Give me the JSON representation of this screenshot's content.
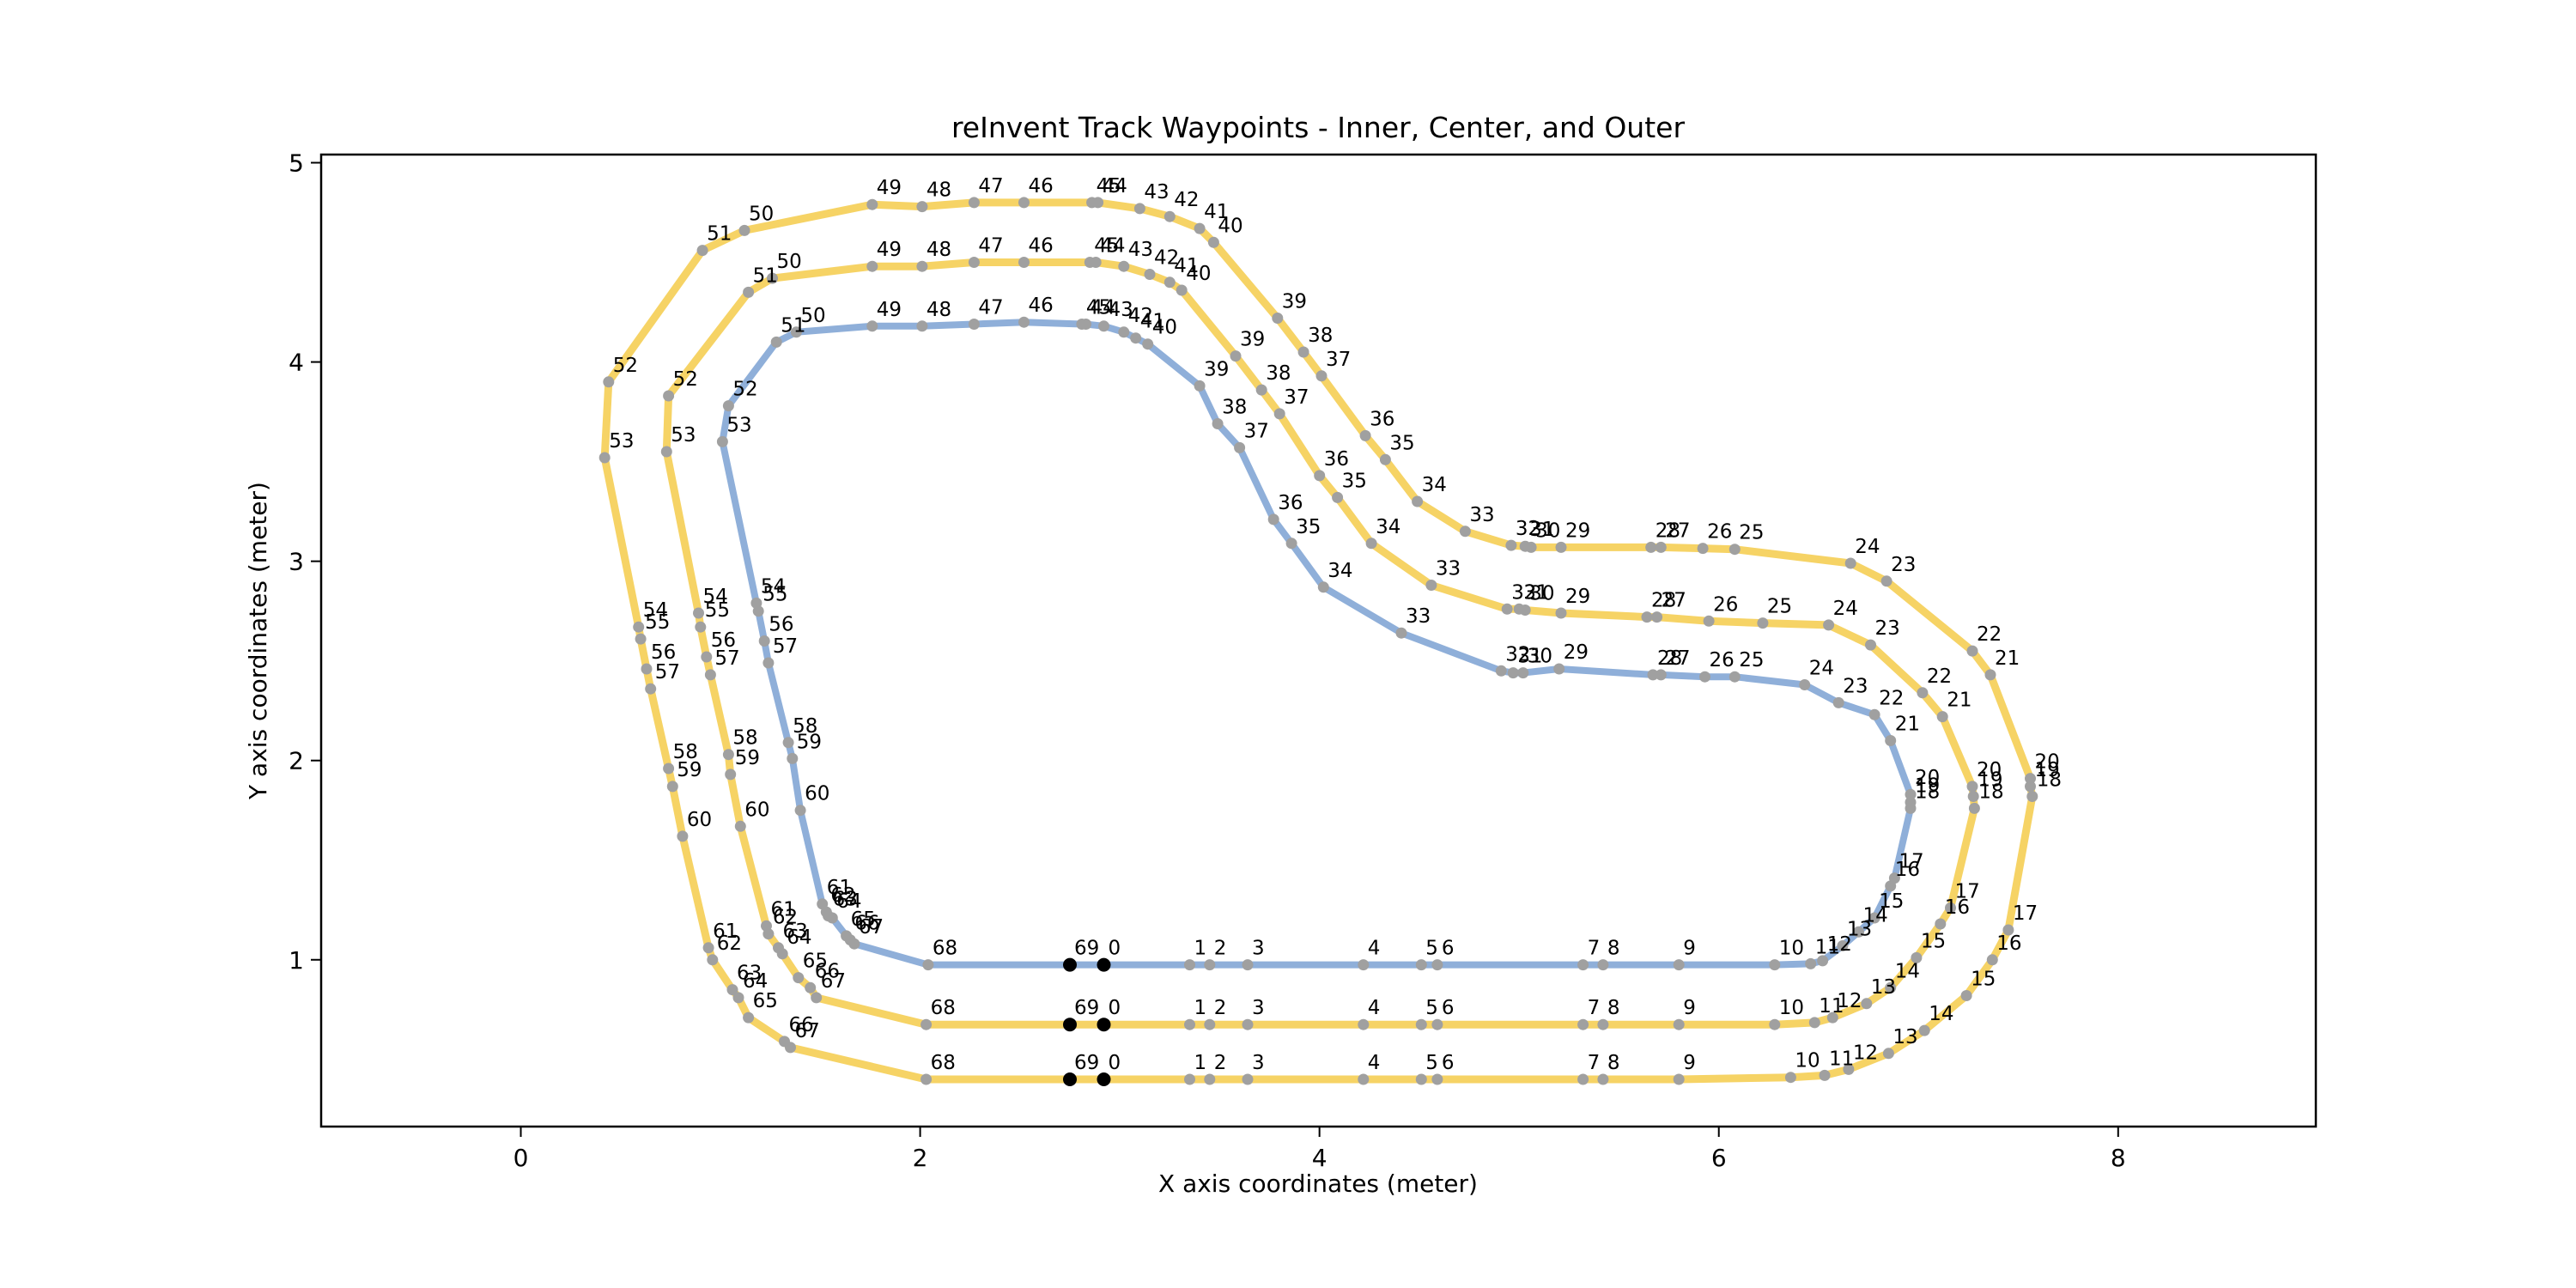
{
  "figure": {
    "title": "reInvent Track Waypoints - Inner, Center, and Outer",
    "xlabel": "X axis coordinates (meter)",
    "ylabel": "Y axis coordinates (meter)"
  },
  "chart_data": {
    "type": "line",
    "title": "reInvent Track Waypoints - Inner, Center, and Outer",
    "xlabel": "X axis coordinates (meter)",
    "ylabel": "Y axis coordinates (meter)",
    "xlim": [
      -1.0,
      8.99
    ],
    "ylim": [
      0.163,
      5.041
    ],
    "x_ticks": [
      0,
      2,
      4,
      6,
      8
    ],
    "y_ticks": [
      1,
      2,
      3,
      4,
      5
    ],
    "grid": false,
    "legend": "none",
    "marker_color": "#a0a0a0",
    "start_marker_color": "#000000",
    "annotation_color": "#000000",
    "annotation_font_px": 23,
    "waypoint_numbering": "each loop annotated 0-69 in order; waypoints 69 and 0 drawn as black dots",
    "start_marker_indices": [
      69,
      0
    ],
    "series": [
      {
        "name": "outer",
        "color": "#f6d365",
        "line_width": 9,
        "closed": true,
        "points": [
          [
            2.92,
            0.4
          ],
          [
            3.35,
            0.4
          ],
          [
            3.45,
            0.4
          ],
          [
            3.64,
            0.4
          ],
          [
            4.22,
            0.4
          ],
          [
            4.51,
            0.4
          ],
          [
            4.59,
            0.4
          ],
          [
            5.32,
            0.4
          ],
          [
            5.42,
            0.4
          ],
          [
            5.8,
            0.4
          ],
          [
            6.36,
            0.41
          ],
          [
            6.53,
            0.42
          ],
          [
            6.65,
            0.45
          ],
          [
            6.85,
            0.53
          ],
          [
            7.03,
            0.645
          ],
          [
            7.24,
            0.82
          ],
          [
            7.37,
            1.0
          ],
          [
            7.45,
            1.15
          ],
          [
            7.57,
            1.82
          ],
          [
            7.56,
            1.87
          ],
          [
            7.56,
            1.91
          ],
          [
            7.36,
            2.43
          ],
          [
            7.27,
            2.55
          ],
          [
            6.84,
            2.9
          ],
          [
            6.66,
            2.99
          ],
          [
            6.08,
            3.06
          ],
          [
            5.92,
            3.065
          ],
          [
            5.71,
            3.07
          ],
          [
            5.66,
            3.07
          ],
          [
            5.21,
            3.07
          ],
          [
            5.06,
            3.07
          ],
          [
            5.03,
            3.075
          ],
          [
            4.96,
            3.08
          ],
          [
            4.73,
            3.15
          ],
          [
            4.49,
            3.3
          ],
          [
            4.33,
            3.51
          ],
          [
            4.23,
            3.63
          ],
          [
            4.01,
            3.93
          ],
          [
            3.92,
            4.05
          ],
          [
            3.79,
            4.22
          ],
          [
            3.47,
            4.6
          ],
          [
            3.4,
            4.67
          ],
          [
            3.25,
            4.73
          ],
          [
            3.1,
            4.77
          ],
          [
            2.89,
            4.8
          ],
          [
            2.86,
            4.8
          ],
          [
            2.52,
            4.8
          ],
          [
            2.27,
            4.8
          ],
          [
            2.01,
            4.78
          ],
          [
            1.76,
            4.79
          ],
          [
            1.12,
            4.66
          ],
          [
            0.91,
            4.56
          ],
          [
            0.44,
            3.9
          ],
          [
            0.42,
            3.52
          ],
          [
            0.59,
            2.67
          ],
          [
            0.6,
            2.61
          ],
          [
            0.63,
            2.46
          ],
          [
            0.65,
            2.36
          ],
          [
            0.74,
            1.96
          ],
          [
            0.76,
            1.87
          ],
          [
            0.81,
            1.62
          ],
          [
            0.94,
            1.06
          ],
          [
            0.96,
            1.0
          ],
          [
            1.06,
            0.85
          ],
          [
            1.09,
            0.81
          ],
          [
            1.14,
            0.71
          ],
          [
            1.32,
            0.59
          ],
          [
            1.35,
            0.56
          ],
          [
            2.03,
            0.4
          ],
          [
            2.75,
            0.4
          ]
        ]
      },
      {
        "name": "center",
        "color": "#f6d365",
        "line_width": 9,
        "closed": true,
        "points": [
          [
            2.92,
            0.675
          ],
          [
            3.35,
            0.675
          ],
          [
            3.45,
            0.675
          ],
          [
            3.64,
            0.675
          ],
          [
            4.22,
            0.675
          ],
          [
            4.51,
            0.675
          ],
          [
            4.59,
            0.675
          ],
          [
            5.32,
            0.675
          ],
          [
            5.42,
            0.675
          ],
          [
            5.8,
            0.675
          ],
          [
            6.28,
            0.675
          ],
          [
            6.48,
            0.685
          ],
          [
            6.57,
            0.71
          ],
          [
            6.74,
            0.78
          ],
          [
            6.86,
            0.86
          ],
          [
            6.99,
            1.01
          ],
          [
            7.11,
            1.18
          ],
          [
            7.16,
            1.26
          ],
          [
            7.28,
            1.76
          ],
          [
            7.275,
            1.82
          ],
          [
            7.27,
            1.87
          ],
          [
            7.12,
            2.22
          ],
          [
            7.02,
            2.34
          ],
          [
            6.76,
            2.58
          ],
          [
            6.55,
            2.68
          ],
          [
            6.22,
            2.69
          ],
          [
            5.95,
            2.7
          ],
          [
            5.69,
            2.72
          ],
          [
            5.64,
            2.72
          ],
          [
            5.21,
            2.74
          ],
          [
            5.03,
            2.755
          ],
          [
            5.0,
            2.76
          ],
          [
            4.94,
            2.76
          ],
          [
            4.56,
            2.88
          ],
          [
            4.26,
            3.09
          ],
          [
            4.09,
            3.32
          ],
          [
            4.0,
            3.43
          ],
          [
            3.8,
            3.74
          ],
          [
            3.71,
            3.86
          ],
          [
            3.58,
            4.03
          ],
          [
            3.31,
            4.36
          ],
          [
            3.25,
            4.4
          ],
          [
            3.15,
            4.44
          ],
          [
            3.02,
            4.48
          ],
          [
            2.88,
            4.5
          ],
          [
            2.85,
            4.5
          ],
          [
            2.52,
            4.5
          ],
          [
            2.27,
            4.5
          ],
          [
            2.01,
            4.48
          ],
          [
            1.76,
            4.48
          ],
          [
            1.26,
            4.42
          ],
          [
            1.14,
            4.35
          ],
          [
            0.74,
            3.83
          ],
          [
            0.73,
            3.55
          ],
          [
            0.89,
            2.74
          ],
          [
            0.9,
            2.67
          ],
          [
            0.93,
            2.52
          ],
          [
            0.95,
            2.43
          ],
          [
            1.04,
            2.03
          ],
          [
            1.05,
            1.93
          ],
          [
            1.1,
            1.67
          ],
          [
            1.23,
            1.17
          ],
          [
            1.24,
            1.13
          ],
          [
            1.29,
            1.06
          ],
          [
            1.31,
            1.03
          ],
          [
            1.39,
            0.91
          ],
          [
            1.45,
            0.86
          ],
          [
            1.48,
            0.81
          ],
          [
            2.03,
            0.675
          ],
          [
            2.75,
            0.675
          ]
        ]
      },
      {
        "name": "inner",
        "color": "#8fafd9",
        "line_width": 8,
        "closed": true,
        "points": [
          [
            2.92,
            0.975
          ],
          [
            3.35,
            0.975
          ],
          [
            3.45,
            0.975
          ],
          [
            3.64,
            0.975
          ],
          [
            4.22,
            0.975
          ],
          [
            4.51,
            0.975
          ],
          [
            4.59,
            0.975
          ],
          [
            5.32,
            0.975
          ],
          [
            5.42,
            0.975
          ],
          [
            5.8,
            0.975
          ],
          [
            6.28,
            0.975
          ],
          [
            6.46,
            0.98
          ],
          [
            6.52,
            0.995
          ],
          [
            6.62,
            1.07
          ],
          [
            6.7,
            1.14
          ],
          [
            6.78,
            1.21
          ],
          [
            6.86,
            1.37
          ],
          [
            6.88,
            1.41
          ],
          [
            6.96,
            1.76
          ],
          [
            6.96,
            1.79
          ],
          [
            6.96,
            1.83
          ],
          [
            6.86,
            2.1
          ],
          [
            6.78,
            2.23
          ],
          [
            6.6,
            2.29
          ],
          [
            6.43,
            2.38
          ],
          [
            6.08,
            2.42
          ],
          [
            5.93,
            2.42
          ],
          [
            5.71,
            2.43
          ],
          [
            5.67,
            2.43
          ],
          [
            5.2,
            2.46
          ],
          [
            5.02,
            2.44
          ],
          [
            4.97,
            2.44
          ],
          [
            4.91,
            2.45
          ],
          [
            4.41,
            2.64
          ],
          [
            4.02,
            2.87
          ],
          [
            3.86,
            3.09
          ],
          [
            3.77,
            3.21
          ],
          [
            3.6,
            3.57
          ],
          [
            3.49,
            3.69
          ],
          [
            3.4,
            3.88
          ],
          [
            3.14,
            4.09
          ],
          [
            3.08,
            4.12
          ],
          [
            3.02,
            4.15
          ],
          [
            2.92,
            4.18
          ],
          [
            2.83,
            4.19
          ],
          [
            2.81,
            4.19
          ],
          [
            2.52,
            4.2
          ],
          [
            2.27,
            4.19
          ],
          [
            2.01,
            4.18
          ],
          [
            1.76,
            4.18
          ],
          [
            1.38,
            4.15
          ],
          [
            1.28,
            4.1
          ],
          [
            1.04,
            3.78
          ],
          [
            1.01,
            3.6
          ],
          [
            1.18,
            2.79
          ],
          [
            1.19,
            2.75
          ],
          [
            1.22,
            2.6
          ],
          [
            1.24,
            2.49
          ],
          [
            1.34,
            2.09
          ],
          [
            1.36,
            2.01
          ],
          [
            1.4,
            1.75
          ],
          [
            1.51,
            1.28
          ],
          [
            1.53,
            1.24
          ],
          [
            1.54,
            1.22
          ],
          [
            1.56,
            1.21
          ],
          [
            1.63,
            1.12
          ],
          [
            1.65,
            1.1
          ],
          [
            1.67,
            1.08
          ],
          [
            2.04,
            0.975
          ],
          [
            2.75,
            0.975
          ]
        ]
      }
    ]
  }
}
